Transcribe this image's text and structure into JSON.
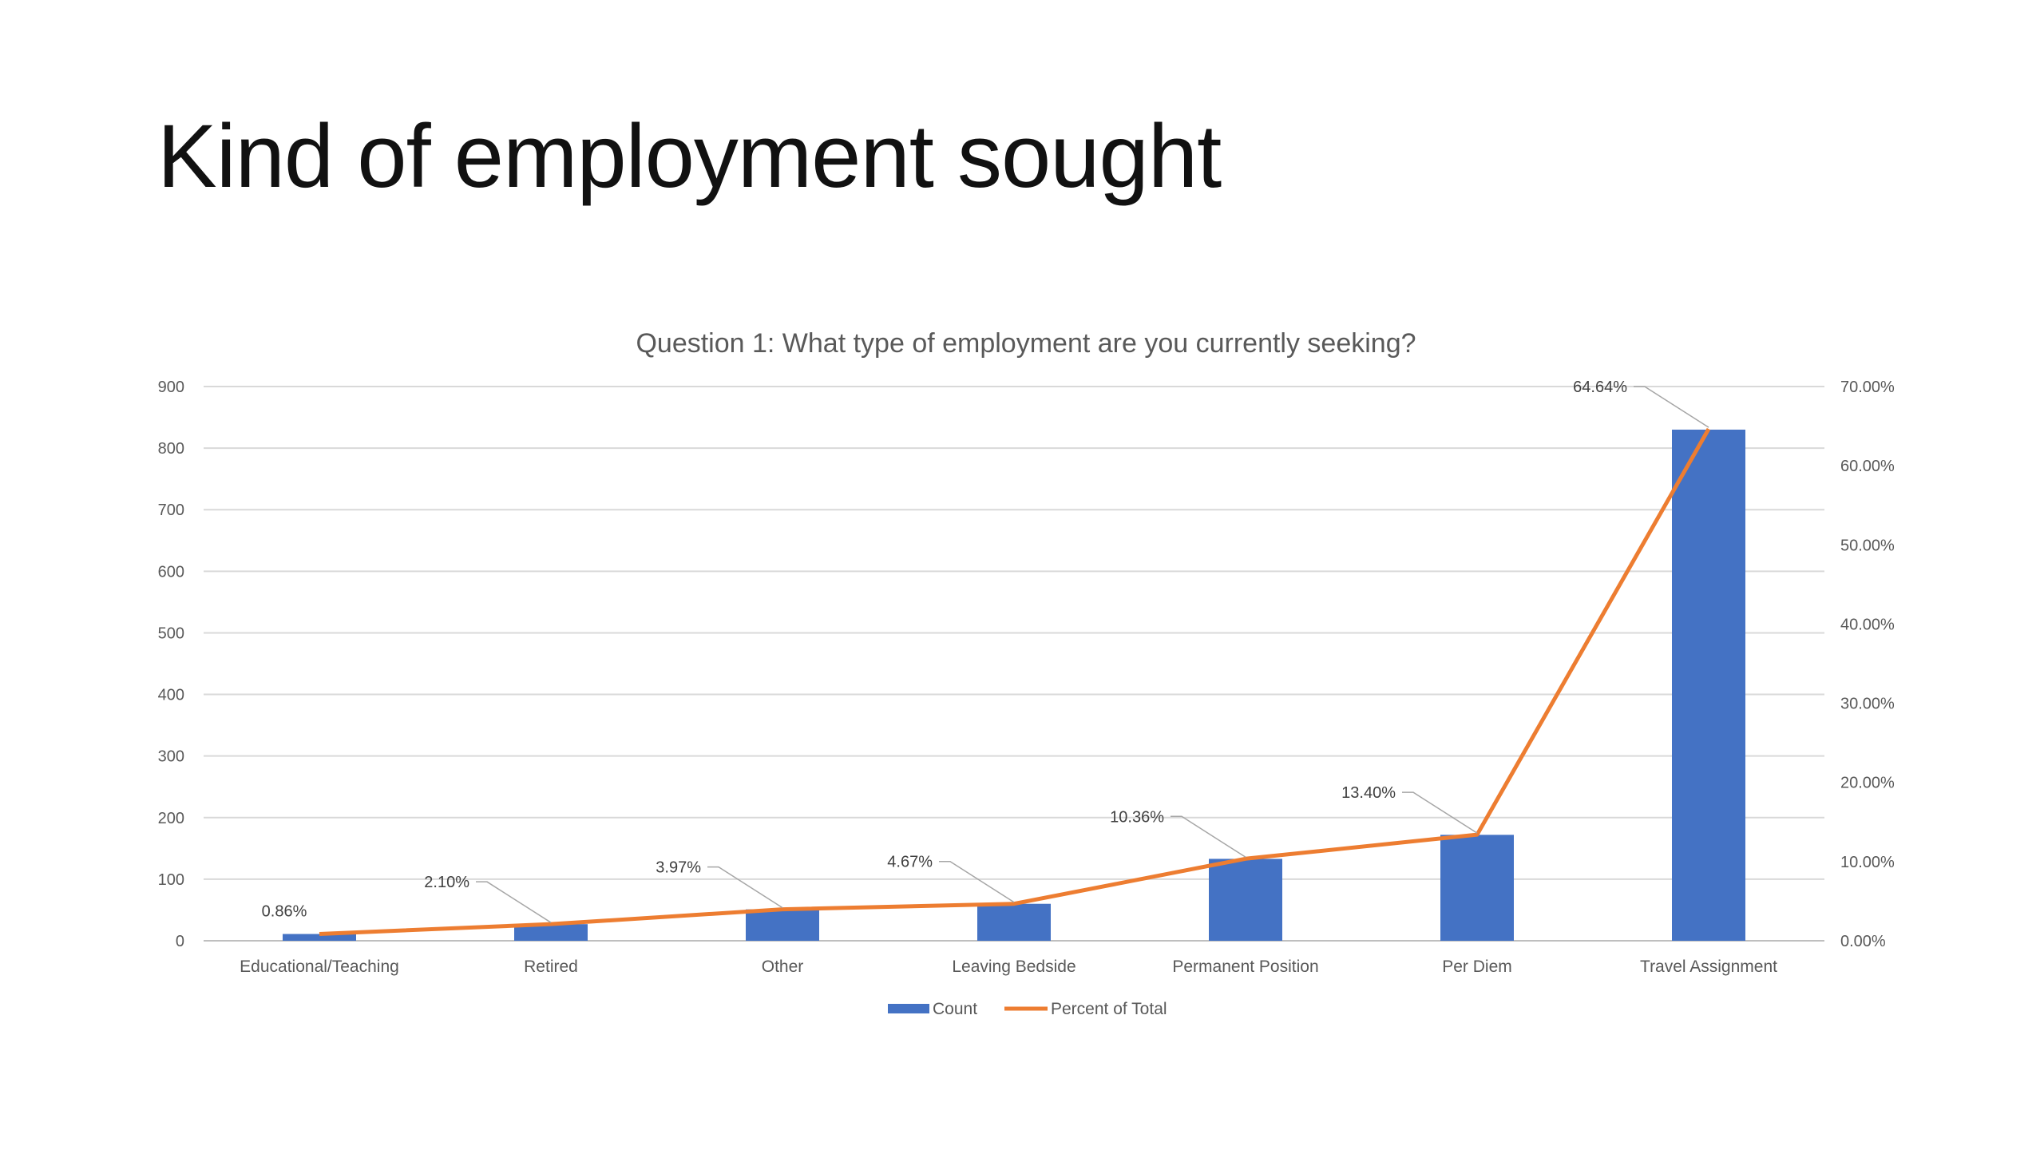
{
  "slide": {
    "title": "Kind of employment sought"
  },
  "chart_data": {
    "type": "bar",
    "title": "Question 1: What type of employment are you currently seeking?",
    "categories": [
      "Educational/Teaching",
      "Retired",
      "Other",
      "Leaving Bedside",
      "Permanent Position",
      "Per Diem",
      "Travel Assignment"
    ],
    "series": [
      {
        "name": "Count",
        "type": "bar",
        "axis": "left",
        "color": "#4472C4",
        "values": [
          11,
          27,
          51,
          60,
          133,
          172,
          830
        ]
      },
      {
        "name": "Percent of Total",
        "type": "line",
        "axis": "right",
        "color": "#ED7D31",
        "values": [
          0.86,
          2.1,
          3.97,
          4.67,
          10.36,
          13.4,
          64.64
        ],
        "data_labels": [
          "0.86%",
          "2.10%",
          "3.97%",
          "4.67%",
          "10.36%",
          "13.40%",
          "64.64%"
        ]
      }
    ],
    "y_left": {
      "min": 0,
      "max": 900,
      "ticks": [
        "0",
        "100",
        "200",
        "300",
        "400",
        "500",
        "600",
        "700",
        "800",
        "900"
      ]
    },
    "y_right": {
      "min": 0,
      "max": 70,
      "ticks": [
        "0.00%",
        "10.00%",
        "20.00%",
        "30.00%",
        "40.00%",
        "50.00%",
        "60.00%",
        "70.00%"
      ]
    },
    "grid": true,
    "legend": {
      "position": "bottom",
      "items": [
        "Count",
        "Percent of Total"
      ]
    },
    "colors": {
      "gridline": "#D9D9D9",
      "axis": "#BFBFBF",
      "leader": "#A6A6A6"
    }
  }
}
